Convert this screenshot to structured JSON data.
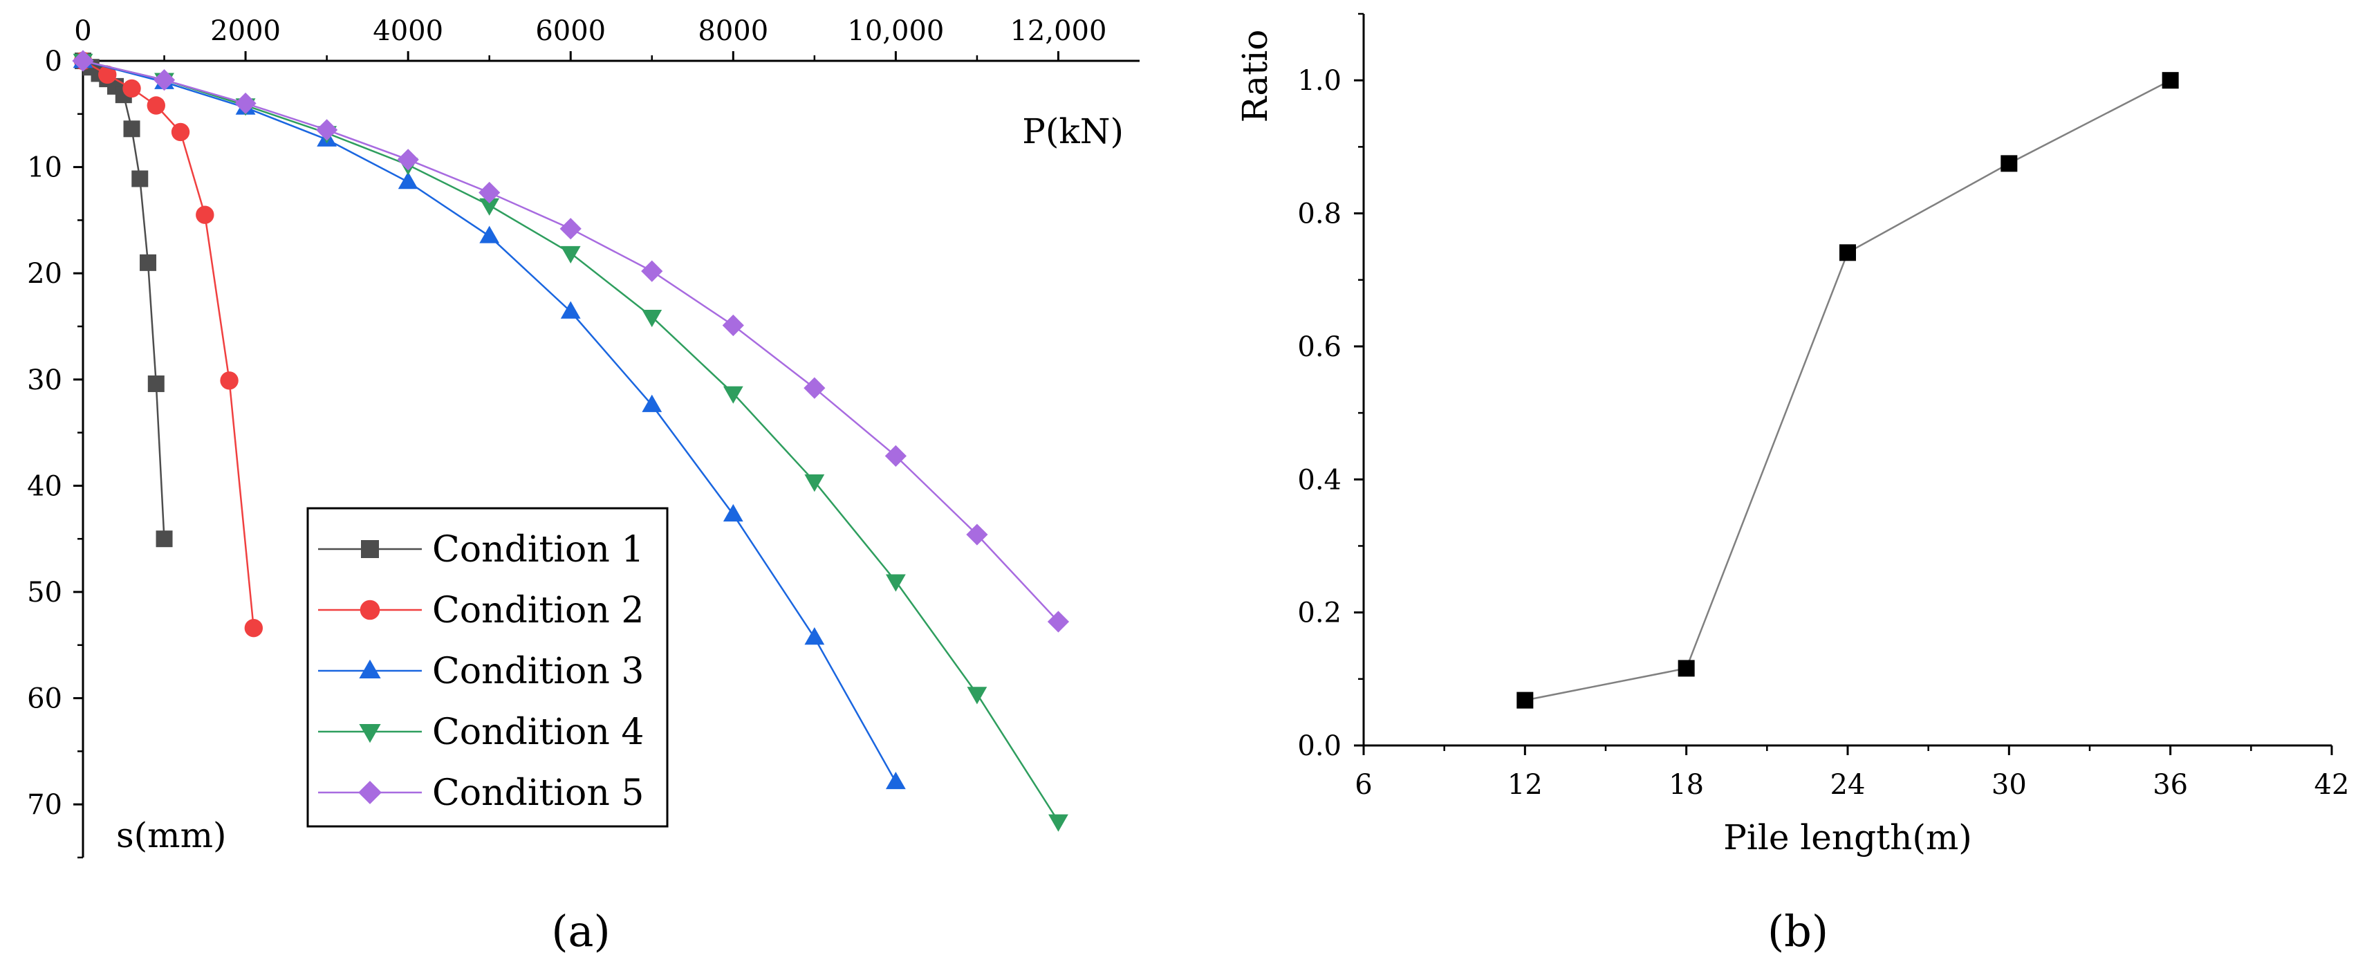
{
  "chart_data": [
    {
      "panel_label": "(a)",
      "type": "line",
      "xlabel": "P(kN)",
      "ylabel": "s(mm)",
      "x_axis_position": "top",
      "y_axis_inverted": true,
      "xlim": [
        0,
        13000
      ],
      "ylim": [
        0,
        75
      ],
      "xticks": [
        0,
        2000,
        4000,
        6000,
        8000,
        10000,
        12000
      ],
      "xtick_labels": [
        "0",
        "2000",
        "4000",
        "6000",
        "8000",
        "10,000",
        "12,000"
      ],
      "yticks": [
        0,
        10,
        20,
        30,
        40,
        50,
        60,
        70
      ],
      "ytick_labels": [
        "0",
        "10",
        "20",
        "30",
        "40",
        "50",
        "60",
        "70"
      ],
      "grid": false,
      "legend_position": "bottom-center",
      "series": [
        {
          "name": "Condition 1",
          "color": "#4d4d4d",
          "marker": "square",
          "points": [
            [
              0,
              0
            ],
            [
              100,
              0.6
            ],
            [
              200,
              1.2
            ],
            [
              300,
              1.7
            ],
            [
              400,
              2.4
            ],
            [
              500,
              3.2
            ],
            [
              600,
              6.4
            ],
            [
              700,
              11.1
            ],
            [
              800,
              19.0
            ],
            [
              900,
              30.4
            ],
            [
              1000,
              45.0
            ]
          ]
        },
        {
          "name": "Condition 2",
          "color": "#f04040",
          "marker": "circle",
          "points": [
            [
              0,
              0
            ],
            [
              300,
              1.3
            ],
            [
              600,
              2.6
            ],
            [
              900,
              4.2
            ],
            [
              1200,
              6.7
            ],
            [
              1500,
              14.5
            ],
            [
              1800,
              30.1
            ],
            [
              2100,
              53.4
            ]
          ]
        },
        {
          "name": "Condition 3",
          "color": "#1a66e0",
          "marker": "triangle-up",
          "points": [
            [
              0,
              0
            ],
            [
              1000,
              2.0
            ],
            [
              2000,
              4.4
            ],
            [
              3000,
              7.4
            ],
            [
              4000,
              11.4
            ],
            [
              5000,
              16.5
            ],
            [
              6000,
              23.6
            ],
            [
              7000,
              32.4
            ],
            [
              8000,
              42.7
            ],
            [
              9000,
              54.3
            ],
            [
              10000,
              67.9
            ]
          ]
        },
        {
          "name": "Condition 4",
          "color": "#2e9e5e",
          "marker": "triangle-down",
          "points": [
            [
              0,
              0
            ],
            [
              1000,
              1.8
            ],
            [
              2000,
              4.2
            ],
            [
              3000,
              6.8
            ],
            [
              4000,
              9.8
            ],
            [
              5000,
              13.6
            ],
            [
              6000,
              18.1
            ],
            [
              7000,
              24.1
            ],
            [
              8000,
              31.3
            ],
            [
              9000,
              39.6
            ],
            [
              10000,
              49.0
            ],
            [
              11000,
              59.6
            ],
            [
              12000,
              71.6
            ]
          ]
        },
        {
          "name": "Condition 5",
          "color": "#a86be0",
          "marker": "diamond",
          "points": [
            [
              0,
              0
            ],
            [
              1000,
              1.8
            ],
            [
              2000,
              4.0
            ],
            [
              3000,
              6.5
            ],
            [
              4000,
              9.3
            ],
            [
              5000,
              12.4
            ],
            [
              6000,
              15.8
            ],
            [
              7000,
              19.8
            ],
            [
              8000,
              24.9
            ],
            [
              9000,
              30.8
            ],
            [
              10000,
              37.2
            ],
            [
              11000,
              44.6
            ],
            [
              12000,
              52.8
            ]
          ]
        }
      ]
    },
    {
      "panel_label": "(b)",
      "type": "line",
      "xlabel": "Pile length(m)",
      "ylabel": "Ratio",
      "xlim": [
        6,
        42
      ],
      "ylim": [
        0,
        1.1
      ],
      "xticks": [
        6,
        12,
        18,
        24,
        30,
        36,
        42
      ],
      "xtick_labels": [
        "6",
        "12",
        "18",
        "24",
        "30",
        "36",
        "42"
      ],
      "yticks": [
        0,
        0.2,
        0.4,
        0.6,
        0.8,
        1.0
      ],
      "ytick_labels": [
        "0.0",
        "0.2",
        "0.4",
        "0.6",
        "0.8",
        "1.0"
      ],
      "grid": false,
      "series": [
        {
          "color": "#000000",
          "line_color": "#808080",
          "marker": "square",
          "x": [
            12,
            18,
            24,
            30,
            36
          ],
          "values": [
            0.068,
            0.116,
            0.741,
            0.875,
            1.0
          ]
        }
      ]
    }
  ]
}
